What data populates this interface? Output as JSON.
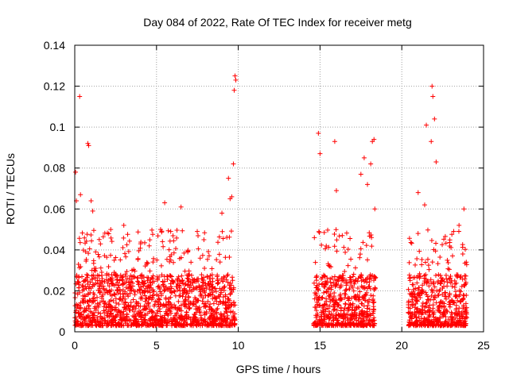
{
  "chart_data": {
    "type": "scatter",
    "title": "Day 084 of 2022, Rate Of TEC Index for receiver metg",
    "xlabel": "GPS time / hours",
    "ylabel": "ROTI / TECUs",
    "xlim": [
      0,
      25
    ],
    "ylim": [
      0,
      0.14
    ],
    "x_ticks": [
      0,
      5,
      10,
      15,
      20,
      25
    ],
    "x_tick_labels": [
      "0",
      "5",
      "10",
      "15",
      "20",
      "25"
    ],
    "y_ticks": [
      0,
      0.02,
      0.04,
      0.06,
      0.08,
      0.1,
      0.12,
      0.14
    ],
    "y_tick_labels": [
      "0",
      "0.02",
      "0.04",
      "0.06",
      "0.08",
      "0.1",
      "0.12",
      "0.14"
    ],
    "grid": true,
    "marker": "+",
    "color": "#ff0000",
    "coverage_intervals_hours": [
      [
        0,
        9.8
      ],
      [
        14.6,
        18.4
      ],
      [
        20.4,
        24.0
      ]
    ],
    "x": [
      0.05,
      0.1,
      0.3,
      0.35,
      0.8,
      0.85,
      1.0,
      1.1,
      2.2,
      3.0,
      5.5,
      6.5,
      9.0,
      9.4,
      9.5,
      9.6,
      9.7,
      9.75,
      9.8,
      9.85,
      14.9,
      15.0,
      15.9,
      16.0,
      17.5,
      17.7,
      17.9,
      18.1,
      18.2,
      18.3,
      18.35,
      21.0,
      21.4,
      21.5,
      21.8,
      21.85,
      21.9,
      22.0,
      22.1,
      23.5,
      23.8
    ],
    "y": [
      0.078,
      0.064,
      0.115,
      0.067,
      0.092,
      0.091,
      0.064,
      0.059,
      0.05,
      0.052,
      0.063,
      0.061,
      0.058,
      0.075,
      0.065,
      0.066,
      0.082,
      0.118,
      0.125,
      0.123,
      0.097,
      0.087,
      0.093,
      0.069,
      0.077,
      0.085,
      0.072,
      0.082,
      0.093,
      0.094,
      0.06,
      0.068,
      0.062,
      0.101,
      0.093,
      0.12,
      0.115,
      0.104,
      0.083,
      0.052,
      0.06
    ]
  }
}
